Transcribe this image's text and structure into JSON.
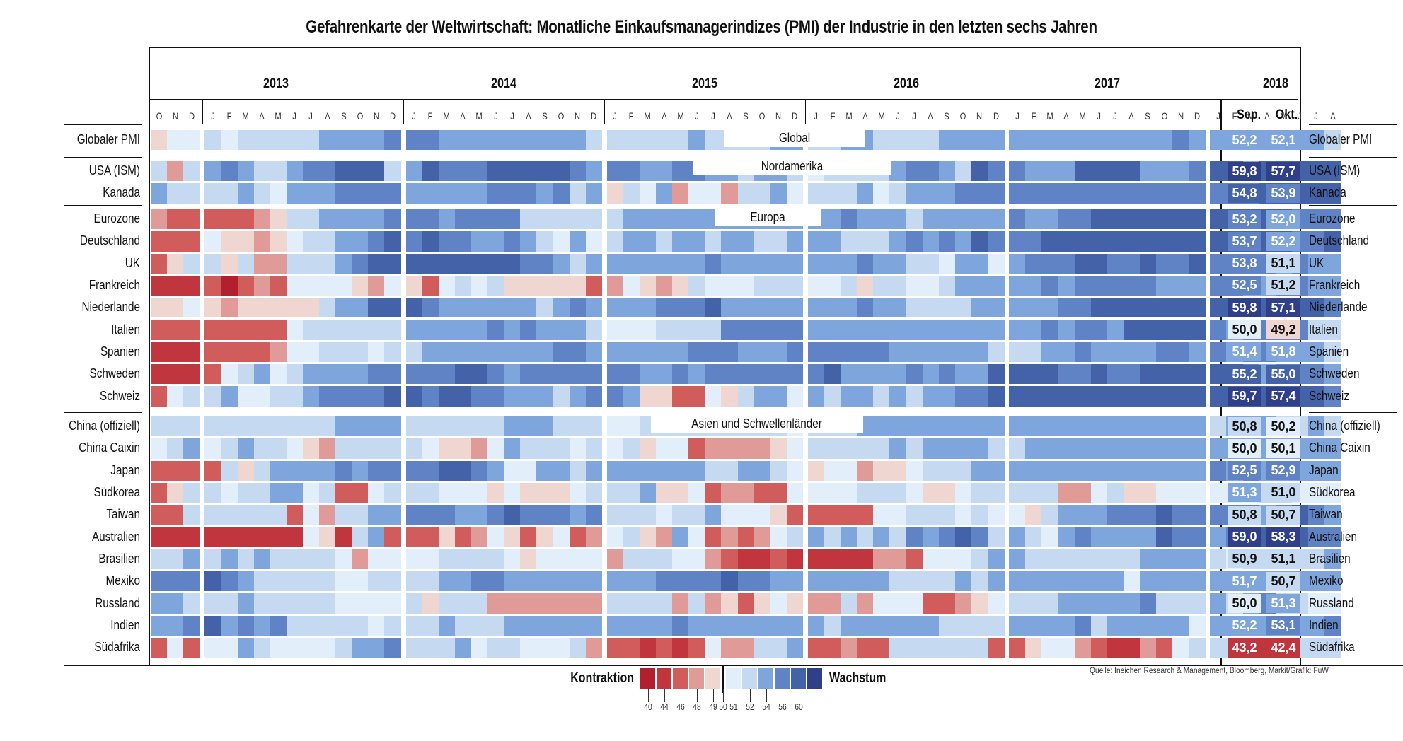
{
  "chart_data": {
    "type": "heatmap",
    "title": "Gefahrenkarte der Weltwirtschaft: Monatliche Einkaufsmanagerindizes (PMI) der Industrie in den letzten sechs Jahren",
    "years": [
      "2013",
      "2014",
      "2015",
      "2016",
      "2017",
      "2018"
    ],
    "month_labels": {
      "lead": [
        "O",
        "N",
        "D"
      ],
      "full": [
        "J",
        "F",
        "M",
        "A",
        "M",
        "J",
        "J",
        "A",
        "S",
        "O",
        "N",
        "D"
      ],
      "last": [
        "J",
        "F",
        "M",
        "A",
        "M",
        "J",
        "J",
        "A"
      ]
    },
    "latest_headers": [
      "Sep.",
      "Okt."
    ],
    "sections": [
      {
        "label": "Global",
        "rows": [
          0
        ]
      },
      {
        "label": "Nordamerika",
        "rows": [
          1,
          2
        ]
      },
      {
        "label": "Europa",
        "rows": [
          3,
          4,
          5,
          6,
          7,
          8,
          9,
          10,
          11
        ]
      },
      {
        "label": "Asien und Schwellenländer",
        "rows": [
          12,
          13,
          14,
          15,
          16,
          17,
          18,
          19,
          20,
          21,
          22
        ]
      }
    ],
    "bin_values": [
      41,
      44.5,
      46.5,
      48.5,
      49.5,
      50.5,
      51.5,
      53,
      55,
      57,
      59
    ],
    "rows": [
      {
        "name": "Globaler PMI",
        "sep": "52,2",
        "okt": "52,1",
        "bins": "4556566666777788877777777766666676666776677666677777777777777877777777"
      },
      {
        "name": "USA (ISM)",
        "sep": "59,8",
        "okt": "57,7",
        "bins": "63678766788999679888999998788778877677656666788769887779999777899799999"
      },
      {
        "name": "Kanada",
        "sep": "54,8",
        "okt": "53,9",
        "bins": "76666765777888877777888786746573553667566675677788888888888888888899999"
      },
      {
        "name": "Eurozone",
        "sep": "53,2",
        "okt": "52,0",
        "bins": "32222234667777888788886666667777777777777877767777787788999999999999888"
      },
      {
        "name": "Deutschland",
        "sep": "53,7",
        "okt": "52,2",
        "bins": "22254434566778989887787657567767767766777666787879888999999999999999889"
      },
      {
        "name": "UK",
        "sep": "53,8",
        "okt": "51,1",
        "bins": "24664633666789999999998876777777787777777787766577578889988988988887877"
      },
      {
        "name": "Frankreich",
        "sep": "52,5",
        "okt": "51,2",
        "bins": "11120232555543542565644444235434655566655646655677777878888877788778877"
      },
      {
        "name": "Niederlande",
        "sep": "59,8",
        "okt": "57,1",
        "bins": "44543444446779998777777678777788897777777787766667777788999999999999998"
      },
      {
        "name": "Italien",
        "sep": "50,0",
        "okt": "49,2",
        "bins": "22222222566666677777878777655566668888877777777777777878879999987888866"
      },
      {
        "name": "Spanien",
        "sep": "51,4",
        "okt": "51,8",
        "bins": "11122223556665667777777788777777888777888888777777666778777788787887776"
      },
      {
        "name": "Schweden",
        "sep": "55,2",
        "okt": "55,0",
        "bins": "11125675677778888899878888888778788888889777787877999988988999999878887"
      },
      {
        "name": "Schweiz",
        "sep": "59,7",
        "okt": "57,4",
        "bins": "25667556678888998998877767887442254677576776767788999999999999999999998"
      },
      {
        "name": "China (offiziell)",
        "sep": "50,8",
        "okt": "50,2",
        "bins": "66666666666777766666677766655666666666566677777777777777777777767776676"
      },
      {
        "name": "China Caixin",
        "sep": "50,0",
        "okt": "50,1",
        "bins": "56756766543666665443576665656455233334566666767777667777777777777777777"
      },
      {
        "name": "Japan",
        "sep": "52,5",
        "okt": "52,9",
        "bins": "22226467777878888998755776777777766776545534456667777777777777787877777"
      },
      {
        "name": "Südkorea",
        "sep": "51,3",
        "okt": "51,0",
        "bins": "24665667756225666555454445666744523322555566654456666633564455555566555"
      },
      {
        "name": "Taiwan",
        "sep": "50,8",
        "okt": "50,7",
        "bins": "22666666253667788877898887866656675554222225566656554677788898888878987"
      },
      {
        "name": "Australien",
        "sep": "59,0",
        "okt": "58,3",
        "bins": "11111111154167222423542452356437523235676767687898676578777798878899988"
      },
      {
        "name": "Brasilien",
        "sep": "50,9",
        "okt": "51,1",
        "bins": "66767676666535555666654555536665532112111113325556776666666777765666667"
      },
      {
        "name": "Mexiko",
        "sep": "51,7",
        "okt": "50,7",
        "bins": "88898766666556666778877777777788889887777777666676777777775777777777777"
      },
      {
        "name": "Russland",
        "sep": "50,0",
        "okt": "51,3",
        "bins": "77666766666555564666333333366663634245433635552234566677777866676786655"
      },
      {
        "name": "Indien",
        "sep": "52,2",
        "okt": "53,1",
        "bins": "77897878666665666766677777777778777777776777777666677778677777577777778"
      },
      {
        "name": "Südafrika",
        "sep": "43,2",
        "okt": "42,4",
        "bins": "25255765555677866675665556322121253366722322666666224553211325666313666"
      }
    ],
    "legend": {
      "left_label": "Kontraktion",
      "right_label": "Wachstum",
      "ticks": [
        "40",
        "44",
        "46",
        "48",
        "49",
        "50",
        "51",
        "52",
        "54",
        "56",
        "60"
      ],
      "colors": [
        "#b21f2d",
        "#c1353f",
        "#d15c5c",
        "#e09a97",
        "#f0d6d0",
        "#e2eefa",
        "#c5d9f0",
        "#7ea6dc",
        "#5f83c4",
        "#4462a8",
        "#2f3f8a"
      ]
    },
    "source": "Quelle: Ineichen Research & Management, Bloomberg, Markit/Grafik: FuW"
  }
}
